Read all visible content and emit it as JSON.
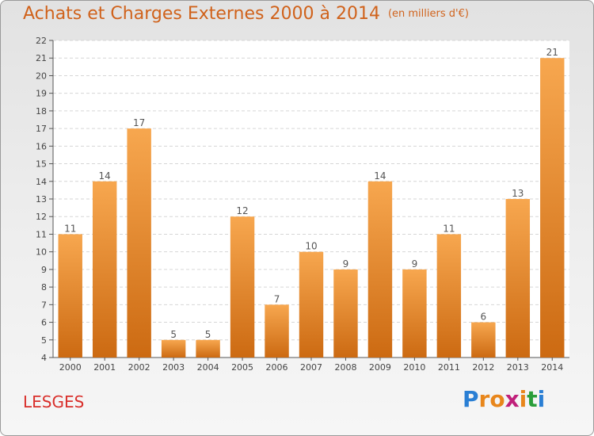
{
  "header": {
    "title": "Achats et Charges Externes 2000 à 2014",
    "unit": "(en milliers d'€)"
  },
  "footer": {
    "commune": "LESGES",
    "logo_letters": [
      "P",
      "r",
      "o",
      "x",
      "i",
      "t",
      "i"
    ],
    "logo_colors": [
      "#2a7fd4",
      "#e8861b",
      "#e8861b",
      "#c0207a",
      "#e8861b",
      "#2a9e3a",
      "#2a7fd4"
    ]
  },
  "chart_data": {
    "type": "bar",
    "title": "Achats et Charges Externes 2000 à 2014",
    "subtitle": "(en milliers d'€)",
    "xlabel": "",
    "ylabel": "",
    "categories": [
      "2000",
      "2001",
      "2002",
      "2003",
      "2004",
      "2005",
      "2006",
      "2007",
      "2008",
      "2009",
      "2010",
      "2011",
      "2012",
      "2013",
      "2014"
    ],
    "values": [
      11,
      14,
      17,
      5,
      5,
      12,
      7,
      10,
      9,
      14,
      9,
      11,
      6,
      13,
      21
    ],
    "value_labels": [
      "11",
      "14",
      "17",
      "5",
      "5",
      "12",
      "7",
      "10",
      "9",
      "14",
      "9",
      "11",
      "6",
      "13",
      "21"
    ],
    "ylim": [
      4,
      22
    ],
    "yticks": [
      "4",
      "5",
      "6",
      "7",
      "8",
      "9",
      "10",
      "11",
      "12",
      "13",
      "14",
      "15",
      "16",
      "17",
      "18",
      "19",
      "20",
      "21",
      "22"
    ],
    "grid": true,
    "legend": "none",
    "bar_color_top": "#f7a74f",
    "bar_color_bottom": "#cc6a12"
  }
}
